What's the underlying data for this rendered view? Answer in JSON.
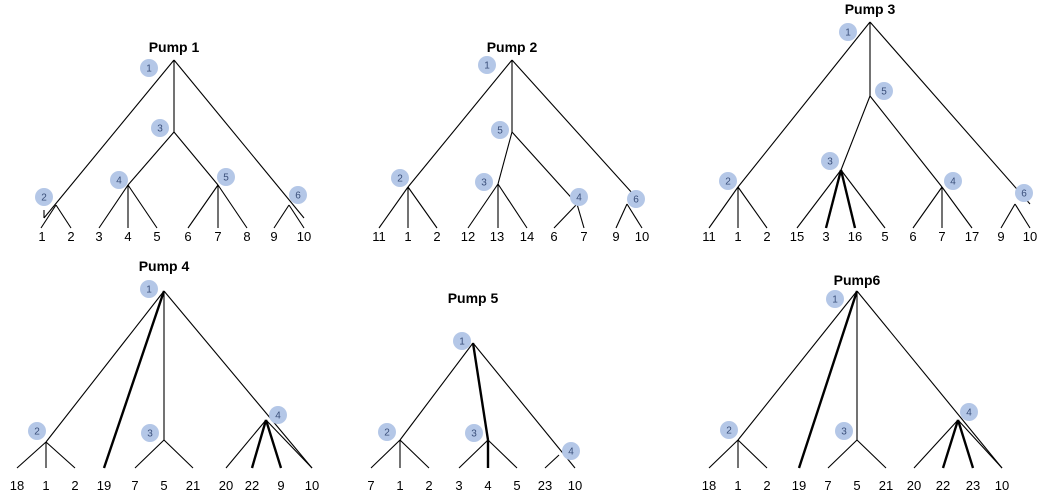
{
  "trees": [
    {
      "title": "Pump 1",
      "badges": [
        "1",
        "2",
        "3",
        "4",
        "5",
        "6"
      ],
      "leaves": [
        "1",
        "2",
        "3",
        "4",
        "5",
        "6",
        "7",
        "8",
        "9",
        "10"
      ]
    },
    {
      "title": "Pump 2",
      "badges": [
        "1",
        "2",
        "5",
        "3",
        "4",
        "6"
      ],
      "leaves": [
        "11",
        "1",
        "2",
        "12",
        "13",
        "14",
        "6",
        "7",
        "9",
        "10"
      ]
    },
    {
      "title": "Pump 3",
      "badges": [
        "1",
        "5",
        "2",
        "3",
        "4",
        "6"
      ],
      "leaves": [
        "11",
        "1",
        "2",
        "15",
        "3",
        "16",
        "5",
        "6",
        "7",
        "17",
        "9",
        "10"
      ]
    },
    {
      "title": "Pump 4",
      "badges": [
        "1",
        "2",
        "3",
        "4"
      ],
      "leaves": [
        "18",
        "1",
        "2",
        "19",
        "7",
        "5",
        "21",
        "20",
        "22",
        "9",
        "10"
      ]
    },
    {
      "title": "Pump 5",
      "badges": [
        "1",
        "2",
        "3",
        "4"
      ],
      "leaves": [
        "7",
        "1",
        "2",
        "3",
        "4",
        "5",
        "23",
        "10"
      ]
    },
    {
      "title": "Pump6",
      "badges": [
        "1",
        "2",
        "3",
        "4"
      ],
      "leaves": [
        "18",
        "1",
        "2",
        "19",
        "7",
        "5",
        "21",
        "20",
        "22",
        "23",
        "10"
      ]
    }
  ],
  "colors": {
    "badge_fill": "#b4c7e7",
    "badge_text": "#3a4f7a",
    "line": "#000000"
  }
}
